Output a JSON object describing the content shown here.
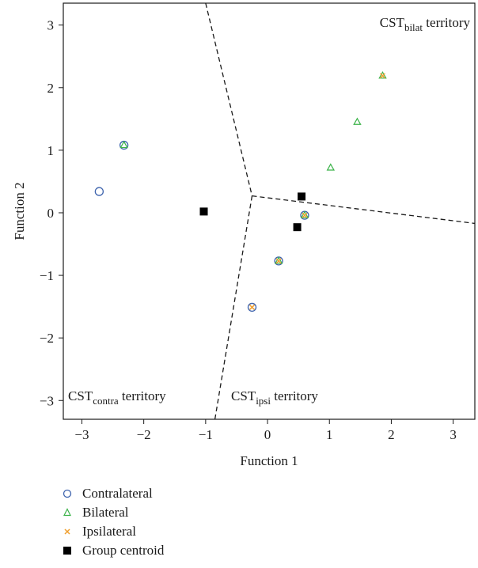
{
  "chart_data": {
    "type": "scatter",
    "xlabel": "Function 1",
    "ylabel": "Function 2",
    "xlim": [
      -3.3,
      3.35
    ],
    "ylim": [
      -3.3,
      3.35
    ],
    "x_ticks": [
      "−3",
      "−2",
      "−1",
      "0",
      "1",
      "2",
      "3"
    ],
    "y_ticks": [
      "−3",
      "−2",
      "−1",
      "0",
      "1",
      "2",
      "3"
    ],
    "grid": false,
    "legend_position": "bottom-left",
    "boundary_vertex": [
      -0.25,
      0.27
    ],
    "boundaries": [
      [
        [
          -1.0,
          3.35
        ],
        [
          -0.25,
          0.27
        ]
      ],
      [
        [
          -0.25,
          0.27
        ],
        [
          3.35,
          -0.17
        ]
      ],
      [
        [
          -0.25,
          0.27
        ],
        [
          -0.85,
          -3.3
        ]
      ]
    ],
    "territories": [
      {
        "id": "bilat",
        "base": "CST",
        "sub": "bilat",
        "suffix": " territory",
        "pos": "top-right"
      },
      {
        "id": "contra",
        "base": "CST",
        "sub": "contra",
        "suffix": " territory",
        "pos": "bottom-left"
      },
      {
        "id": "ipsi",
        "base": "CST",
        "sub": "ipsi",
        "suffix": " territory",
        "pos": "bottom-center"
      }
    ],
    "series": [
      {
        "name": "Contralateral",
        "marker": "circle",
        "color": "#3d63ad",
        "points": [
          [
            -2.72,
            0.34
          ],
          [
            -2.32,
            1.08
          ],
          [
            0.6,
            -0.04
          ],
          [
            0.18,
            -0.77
          ],
          [
            -0.25,
            -1.51
          ]
        ]
      },
      {
        "name": "Bilateral",
        "marker": "triangle",
        "color": "#3cb34a",
        "points": [
          [
            -2.32,
            1.08
          ],
          [
            1.86,
            2.19
          ],
          [
            1.45,
            1.45
          ],
          [
            1.02,
            0.72
          ],
          [
            0.6,
            -0.04
          ],
          [
            0.18,
            -0.77
          ]
        ]
      },
      {
        "name": "Ipsilateral",
        "marker": "cross",
        "color": "#f0a030",
        "points": [
          [
            1.86,
            2.19
          ],
          [
            0.6,
            -0.04
          ],
          [
            0.18,
            -0.77
          ],
          [
            -0.25,
            -1.51
          ]
        ]
      },
      {
        "name": "Group centroid",
        "marker": "square",
        "color": "#000000",
        "points": [
          [
            -1.03,
            0.02
          ],
          [
            0.55,
            0.26
          ],
          [
            0.48,
            -0.23
          ]
        ]
      }
    ]
  }
}
